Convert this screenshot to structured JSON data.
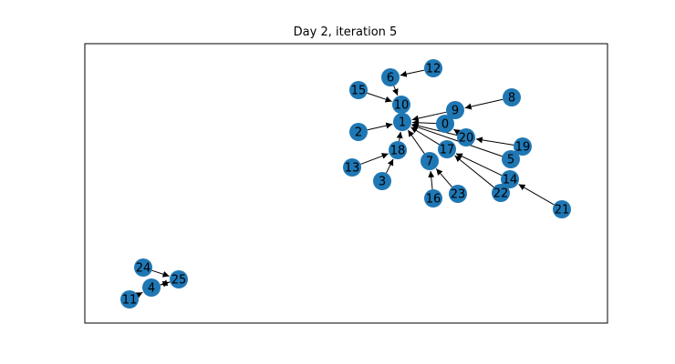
{
  "title": "Day 2, iteration 5",
  "colors": {
    "node": "#1f77b4",
    "edge": "#000000",
    "frame": "#000000",
    "background": "#ffffff"
  },
  "nodes": [
    {
      "id": "1"
    },
    {
      "id": "0"
    },
    {
      "id": "2"
    },
    {
      "id": "3"
    },
    {
      "id": "4"
    },
    {
      "id": "5"
    },
    {
      "id": "6"
    },
    {
      "id": "7"
    },
    {
      "id": "8"
    },
    {
      "id": "9"
    },
    {
      "id": "10"
    },
    {
      "id": "11"
    },
    {
      "id": "12"
    },
    {
      "id": "13"
    },
    {
      "id": "14"
    },
    {
      "id": "15"
    },
    {
      "id": "16"
    },
    {
      "id": "17"
    },
    {
      "id": "18"
    },
    {
      "id": "19"
    },
    {
      "id": "20"
    },
    {
      "id": "21"
    },
    {
      "id": "22"
    },
    {
      "id": "23"
    },
    {
      "id": "24"
    },
    {
      "id": "25"
    }
  ],
  "edges": [
    [
      "12",
      "6"
    ],
    [
      "6",
      "10"
    ],
    [
      "15",
      "10"
    ],
    [
      "10",
      "1"
    ],
    [
      "9",
      "1"
    ],
    [
      "8",
      "9"
    ],
    [
      "0",
      "1"
    ],
    [
      "2",
      "1"
    ],
    [
      "20",
      "1"
    ],
    [
      "20",
      "0"
    ],
    [
      "19",
      "20"
    ],
    [
      "5",
      "1"
    ],
    [
      "18",
      "1"
    ],
    [
      "13",
      "18"
    ],
    [
      "3",
      "18"
    ],
    [
      "7",
      "1"
    ],
    [
      "16",
      "7"
    ],
    [
      "23",
      "7"
    ],
    [
      "17",
      "1"
    ],
    [
      "14",
      "17"
    ],
    [
      "22",
      "17"
    ],
    [
      "21",
      "14"
    ],
    [
      "24",
      "25"
    ],
    [
      "11",
      "4"
    ],
    [
      "4",
      "25"
    ],
    [
      "25",
      "4"
    ]
  ]
}
